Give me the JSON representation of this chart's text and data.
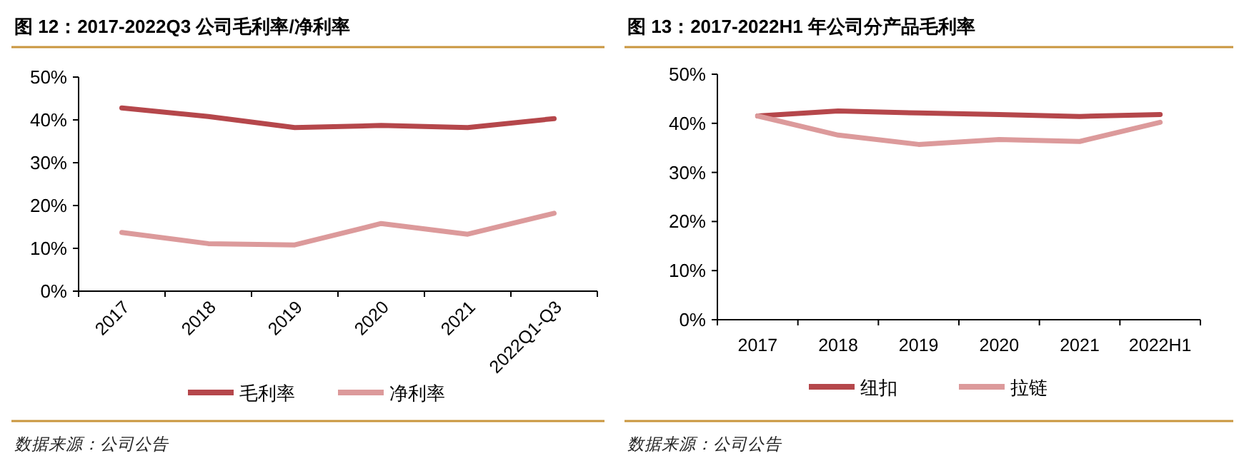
{
  "chart_data": [
    {
      "type": "line",
      "title": "图 12：2017-2022Q3 公司毛利率/净利率",
      "categories": [
        "2017",
        "2018",
        "2019",
        "2020",
        "2021",
        "2022Q1-Q3"
      ],
      "series": [
        {
          "name": "毛利率",
          "color": "#b5474b",
          "values": [
            42.8,
            40.8,
            38.2,
            38.7,
            38.2,
            40.3
          ]
        },
        {
          "name": "净利率",
          "color": "#dc9a9b",
          "values": [
            13.7,
            11.1,
            10.8,
            15.8,
            13.3,
            18.2
          ]
        }
      ],
      "ylim": [
        0,
        50
      ],
      "yticks": [
        {
          "value": 0,
          "label": "0%"
        },
        {
          "value": 10,
          "label": "10%"
        },
        {
          "value": 20,
          "label": "20%"
        },
        {
          "value": 30,
          "label": "30%"
        },
        {
          "value": 40,
          "label": "40%"
        },
        {
          "value": 50,
          "label": "50%"
        }
      ],
      "legend": "bottom",
      "annotations": [
        "数据来源：公司公告"
      ]
    },
    {
      "type": "line",
      "title": "图 13：2017-2022H1 年公司分产品毛利率",
      "categories": [
        "2017",
        "2018",
        "2019",
        "2020",
        "2021",
        "2022H1"
      ],
      "series": [
        {
          "name": "纽扣",
          "color": "#b5474b",
          "values": [
            41.5,
            42.5,
            42.1,
            41.8,
            41.4,
            41.8
          ]
        },
        {
          "name": "拉链",
          "color": "#dc9a9b",
          "values": [
            41.5,
            37.6,
            35.7,
            36.7,
            36.3,
            40.2
          ]
        }
      ],
      "ylim": [
        0,
        50
      ],
      "yticks": [
        {
          "value": 0,
          "label": "0%"
        },
        {
          "value": 10,
          "label": "10%"
        },
        {
          "value": 20,
          "label": "20%"
        },
        {
          "value": 30,
          "label": "30%"
        },
        {
          "value": 40,
          "label": "40%"
        },
        {
          "value": 50,
          "label": "50%"
        }
      ],
      "legend": "bottom",
      "annotations": [
        "数据来源：公司公告"
      ]
    }
  ]
}
